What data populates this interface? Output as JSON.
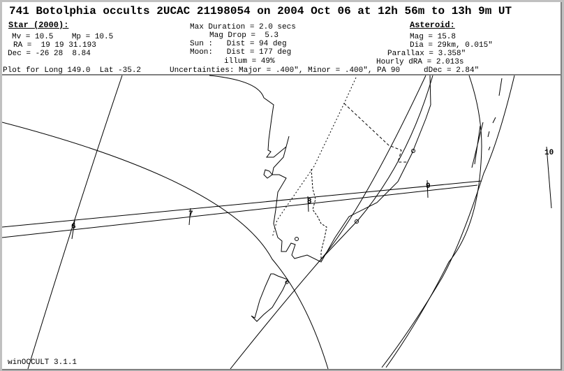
{
  "title": "741 Botolphia occults 2UCAC 21198054 on 2004 Oct 06 at 12h 56m to 13h 9m UT",
  "star": {
    "heading": "Star (2000):",
    "mv": "Mv = 10.5    Mp = 10.5",
    "ra": "RA =  19 19 31.193",
    "dec": "Dec = -26 28  8.84"
  },
  "event": {
    "max_duration": "Max Duration = 2.0 secs",
    "mag_drop": "Mag Drop =  5.3",
    "sun": "Sun :   Dist = 94 deg",
    "moon": "Moon:   Dist = 177 deg",
    "illum": "illum = 49%"
  },
  "asteroid": {
    "heading": "Asteroid:",
    "mag": "Mag = 15.8",
    "dia": "Dia = 29km, 0.015\"",
    "parallax": "Parallax = 3.358\"",
    "hourly_dra": "Hourly dRA = 2.013s",
    "hourly_ddec": "dDec = 2.84\""
  },
  "plot_for": "Plot for Long 149.0  Lat -35.2",
  "uncertainties": "Uncertainties: Major = .400\", Minor = .400\", PA 90",
  "time_marks": [
    "6",
    "7",
    "8",
    "9",
    "10"
  ],
  "footer": "winOCCULT 3.1.1"
}
